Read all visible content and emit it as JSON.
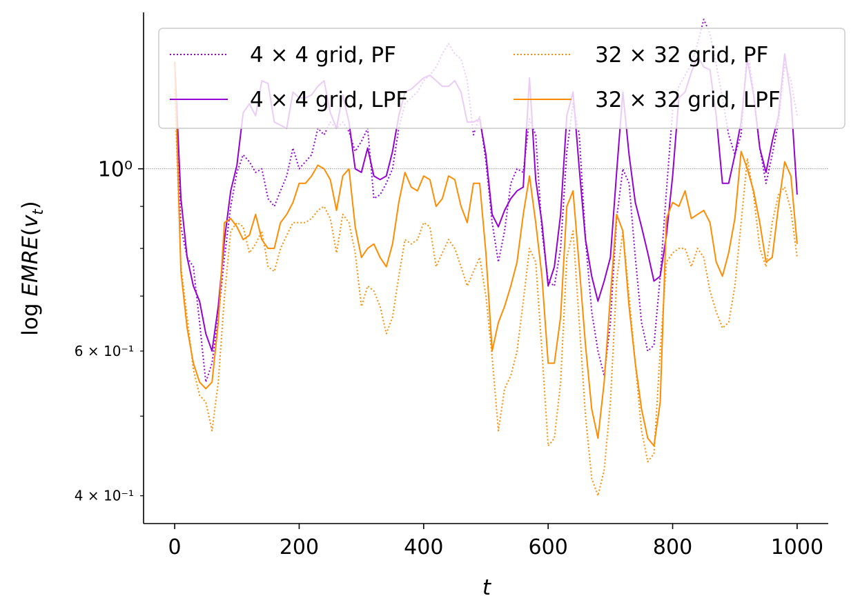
{
  "chart_data": {
    "type": "line",
    "xlabel": "t",
    "ylabel": "log EMRE(v_t)",
    "yscale": "log",
    "xlim": [
      -50,
      1050
    ],
    "ylim": [
      0.37,
      1.55
    ],
    "x_ticks": [
      0,
      200,
      400,
      600,
      800,
      1000
    ],
    "x_tick_labels": [
      "0",
      "200",
      "400",
      "600",
      "800",
      "1000"
    ],
    "y_ticks_major": [
      1.0
    ],
    "y_tick_labels_major": [
      "10⁰"
    ],
    "y_ticks_minor": [
      0.4,
      0.6
    ],
    "y_tick_labels_minor": [
      "4 × 10⁻¹",
      "6 × 10⁻¹"
    ],
    "y_ticks_minor_unlabeled": [
      0.5,
      0.7,
      0.8,
      0.9
    ],
    "reference_line": {
      "y": 1.0,
      "style": "dotted",
      "color": "#888888"
    },
    "legend": {
      "placement": "top",
      "columns": 2
    },
    "x": [
      0,
      10,
      20,
      30,
      40,
      50,
      60,
      70,
      80,
      90,
      100,
      110,
      120,
      130,
      140,
      150,
      160,
      170,
      180,
      190,
      200,
      210,
      220,
      230,
      240,
      250,
      260,
      270,
      280,
      290,
      300,
      310,
      320,
      330,
      340,
      350,
      360,
      370,
      380,
      390,
      400,
      410,
      420,
      430,
      440,
      450,
      460,
      470,
      480,
      490,
      500,
      510,
      520,
      530,
      540,
      550,
      560,
      570,
      580,
      590,
      600,
      610,
      620,
      630,
      640,
      650,
      660,
      670,
      680,
      690,
      700,
      710,
      720,
      730,
      740,
      750,
      760,
      770,
      780,
      790,
      800,
      810,
      820,
      830,
      840,
      850,
      860,
      870,
      880,
      890,
      900,
      910,
      920,
      930,
      940,
      950,
      960,
      970,
      980,
      990,
      1000
    ],
    "series": [
      {
        "name": "4 × 4 grid, PF",
        "color": "#9400d3",
        "style": "dotted",
        "values": [
          1.35,
          0.85,
          0.78,
          0.76,
          0.65,
          0.55,
          0.58,
          0.66,
          0.78,
          0.9,
          0.99,
          1.04,
          1.02,
          0.99,
          1.0,
          0.92,
          0.9,
          0.94,
          0.98,
          1.06,
          1.0,
          1.02,
          1.04,
          1.12,
          1.1,
          1.14,
          1.12,
          1.14,
          1.11,
          1.05,
          1.08,
          1.12,
          0.92,
          0.93,
          0.96,
          1.0,
          1.12,
          1.2,
          1.22,
          1.24,
          1.28,
          1.3,
          1.33,
          1.38,
          1.42,
          1.38,
          1.36,
          1.28,
          1.1,
          1.16,
          1.02,
          0.86,
          0.77,
          0.84,
          0.96,
          1.0,
          0.99,
          1.15,
          1.1,
          0.84,
          0.73,
          0.72,
          0.8,
          1.05,
          1.2,
          1.1,
          0.82,
          0.67,
          0.6,
          0.56,
          0.65,
          0.87,
          1.0,
          0.96,
          0.78,
          0.65,
          0.6,
          0.61,
          0.74,
          0.94,
          1.18,
          1.26,
          1.3,
          1.34,
          1.42,
          1.52,
          1.46,
          1.34,
          1.22,
          1.1,
          1.04,
          1.1,
          1.4,
          1.24,
          1.06,
          0.96,
          1.04,
          1.14,
          1.34,
          1.28,
          1.16
        ]
      },
      {
        "name": "4 × 4 grid, LPF",
        "color": "#9400d3",
        "style": "solid",
        "values": [
          1.35,
          0.92,
          0.78,
          0.72,
          0.69,
          0.63,
          0.6,
          0.68,
          0.82,
          0.94,
          1.01,
          1.17,
          1.2,
          1.16,
          1.28,
          1.27,
          1.14,
          1.13,
          1.12,
          1.24,
          1.22,
          1.22,
          1.23,
          1.26,
          1.28,
          1.17,
          1.12,
          1.23,
          1.14,
          1.0,
          0.99,
          1.06,
          0.98,
          0.97,
          0.98,
          1.05,
          1.16,
          1.24,
          1.25,
          1.27,
          1.29,
          1.3,
          1.28,
          1.26,
          1.26,
          1.28,
          1.24,
          1.14,
          1.14,
          1.15,
          1.04,
          0.88,
          0.85,
          0.89,
          0.92,
          0.94,
          0.95,
          1.29,
          0.97,
          0.86,
          0.72,
          0.76,
          0.88,
          1.16,
          1.24,
          1.0,
          0.82,
          0.74,
          0.69,
          0.73,
          0.78,
          0.99,
          1.24,
          1.04,
          0.91,
          0.85,
          0.79,
          0.73,
          0.74,
          0.83,
          0.98,
          1.22,
          1.24,
          1.31,
          1.37,
          1.33,
          1.32,
          1.16,
          0.96,
          0.96,
          1.04,
          1.14,
          1.36,
          1.23,
          1.06,
          0.99,
          1.08,
          1.16,
          1.38,
          1.22,
          0.93
        ]
      },
      {
        "name": "32 × 32 grid, PF",
        "color": "#ff8c00",
        "style": "dotted",
        "values": [
          1.25,
          0.76,
          0.66,
          0.57,
          0.53,
          0.52,
          0.48,
          0.55,
          0.7,
          0.84,
          0.86,
          0.85,
          0.79,
          0.81,
          0.84,
          0.76,
          0.75,
          0.8,
          0.83,
          0.86,
          0.86,
          0.86,
          0.87,
          0.89,
          0.9,
          0.87,
          0.79,
          0.88,
          0.86,
          0.79,
          0.68,
          0.72,
          0.71,
          0.68,
          0.63,
          0.66,
          0.74,
          0.82,
          0.81,
          0.82,
          0.86,
          0.85,
          0.76,
          0.79,
          0.82,
          0.8,
          0.76,
          0.72,
          0.75,
          0.78,
          0.7,
          0.59,
          0.48,
          0.54,
          0.56,
          0.6,
          0.69,
          0.8,
          0.77,
          0.6,
          0.46,
          0.47,
          0.55,
          0.78,
          0.84,
          0.65,
          0.5,
          0.42,
          0.4,
          0.43,
          0.52,
          0.73,
          0.84,
          0.7,
          0.58,
          0.48,
          0.44,
          0.45,
          0.6,
          0.77,
          0.79,
          0.8,
          0.8,
          0.76,
          0.8,
          0.78,
          0.71,
          0.67,
          0.64,
          0.65,
          0.72,
          0.86,
          1.03,
          0.93,
          0.8,
          0.76,
          0.86,
          0.93,
          0.95,
          0.89,
          0.78
        ]
      },
      {
        "name": "32 × 32 grid, LPF",
        "color": "#ff8c00",
        "style": "solid",
        "values": [
          1.35,
          0.75,
          0.64,
          0.58,
          0.55,
          0.54,
          0.55,
          0.65,
          0.86,
          0.87,
          0.85,
          0.82,
          0.83,
          0.88,
          0.82,
          0.8,
          0.8,
          0.86,
          0.88,
          0.91,
          0.96,
          0.96,
          0.98,
          1.01,
          1.0,
          0.97,
          0.89,
          0.98,
          1.0,
          0.85,
          0.78,
          0.8,
          0.81,
          0.78,
          0.76,
          0.81,
          0.91,
          0.99,
          0.95,
          0.94,
          0.98,
          0.97,
          0.9,
          0.92,
          0.98,
          0.97,
          0.9,
          0.86,
          0.96,
          0.96,
          0.79,
          0.6,
          0.65,
          0.68,
          0.72,
          0.77,
          0.88,
          0.98,
          0.86,
          0.74,
          0.58,
          0.58,
          0.66,
          0.9,
          0.94,
          0.76,
          0.61,
          0.51,
          0.47,
          0.55,
          0.7,
          0.88,
          0.84,
          0.68,
          0.58,
          0.51,
          0.47,
          0.46,
          0.52,
          0.87,
          0.91,
          0.9,
          0.94,
          0.87,
          0.88,
          0.89,
          0.86,
          0.77,
          0.74,
          0.79,
          0.87,
          1.05,
          1.0,
          0.94,
          0.86,
          0.77,
          0.78,
          0.9,
          1.02,
          0.98,
          0.81
        ]
      }
    ]
  }
}
